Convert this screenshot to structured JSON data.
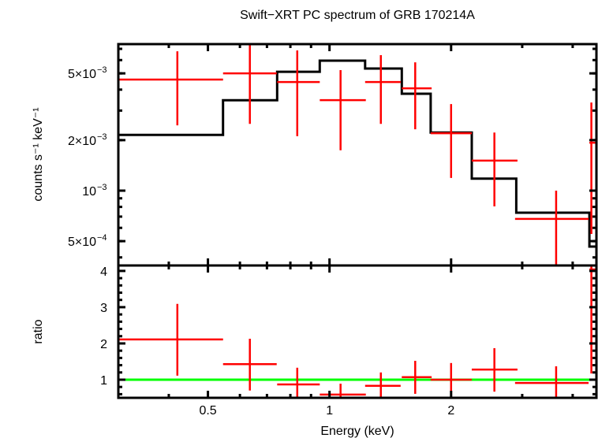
{
  "chart_data": [
    {
      "panel": "spectrum",
      "type": "scatter",
      "title": "Swift−XRT PC spectrum of GRB 170214A",
      "xlabel": "Energy (keV)",
      "ylabel": "counts s⁻¹ keV⁻¹",
      "xscale": "log",
      "yscale": "log",
      "xlim": [
        0.3,
        4.58
      ],
      "ylim": [
        0.000358,
        0.00747
      ],
      "xticks": [
        {
          "value": 0.5,
          "label": "0.5"
        },
        {
          "value": 1,
          "label": "1"
        },
        {
          "value": 2,
          "label": "2"
        }
      ],
      "yticks": [
        {
          "value": 0.0005,
          "mant": "5×10",
          "exp": "−4"
        },
        {
          "value": 0.001,
          "mant": "10",
          "exp": "−3"
        },
        {
          "value": 0.002,
          "mant": "2×10",
          "exp": "−3"
        },
        {
          "value": 0.005,
          "mant": "5×10",
          "exp": "−3"
        }
      ],
      "series": [
        {
          "name": "data",
          "color": "#ff0000",
          "points": [
            {
              "x": 0.42,
              "xlo": 0.3,
              "xhi": 0.545,
              "y": 0.00459,
              "ylo": 0.00245,
              "yhi": 0.00677
            },
            {
              "x": 0.635,
              "xlo": 0.545,
              "xhi": 0.74,
              "y": 0.005,
              "ylo": 0.0025,
              "yhi": 0.00753
            },
            {
              "x": 0.832,
              "xlo": 0.742,
              "xhi": 0.946,
              "y": 0.00444,
              "ylo": 0.00211,
              "yhi": 0.00685
            },
            {
              "x": 1.065,
              "xlo": 0.946,
              "xhi": 1.23,
              "y": 0.00346,
              "ylo": 0.00174,
              "yhi": 0.00523
            },
            {
              "x": 1.34,
              "xlo": 1.225,
              "xhi": 1.5,
              "y": 0.00444,
              "ylo": 0.0025,
              "yhi": 0.00642
            },
            {
              "x": 1.63,
              "xlo": 1.51,
              "xhi": 1.79,
              "y": 0.00407,
              "ylo": 0.00232,
              "yhi": 0.00582
            },
            {
              "x": 2.0,
              "xlo": 1.78,
              "xhi": 2.25,
              "y": 0.0022,
              "ylo": 0.00119,
              "yhi": 0.00328
            },
            {
              "x": 2.56,
              "xlo": 2.25,
              "xhi": 2.92,
              "y": 0.00151,
              "ylo": 0.000806,
              "yhi": 0.00222
            },
            {
              "x": 3.64,
              "xlo": 2.88,
              "xhi": 4.38,
              "y": 0.000678,
              "ylo": 0.000362,
              "yhi": 0.001
            },
            {
              "x": 4.45,
              "xlo": 4.4,
              "xhi": 4.58,
              "y": 0.00193,
              "ylo": 0.000552,
              "yhi": 0.00335
            }
          ]
        },
        {
          "name": "model",
          "color": "#000000",
          "type": "step",
          "steps": [
            {
              "xlo": 0.3,
              "xhi": 0.545,
              "y": 0.00215
            },
            {
              "xlo": 0.545,
              "xhi": 0.742,
              "y": 0.00346
            },
            {
              "xlo": 0.742,
              "xhi": 0.946,
              "y": 0.00511
            },
            {
              "xlo": 0.946,
              "xhi": 1.225,
              "y": 0.00595
            },
            {
              "xlo": 1.225,
              "xhi": 1.51,
              "y": 0.00534
            },
            {
              "xlo": 1.51,
              "xhi": 1.78,
              "y": 0.00378
            },
            {
              "xlo": 1.78,
              "xhi": 2.25,
              "y": 0.00222
            },
            {
              "xlo": 2.25,
              "xhi": 2.9,
              "y": 0.00118
            },
            {
              "xlo": 2.9,
              "xhi": 4.4,
              "y": 0.000739
            },
            {
              "xlo": 4.4,
              "xhi": 4.58,
              "y": 0.000464
            }
          ]
        }
      ]
    },
    {
      "panel": "ratio",
      "type": "scatter",
      "xlabel": "Energy (keV)",
      "ylabel": "ratio",
      "xscale": "log",
      "yscale": "linear",
      "xlim": [
        0.3,
        4.58
      ],
      "ylim": [
        0.5,
        4.15
      ],
      "yticks": [
        {
          "value": 1,
          "label": "1"
        },
        {
          "value": 2,
          "label": "2"
        },
        {
          "value": 3,
          "label": "3"
        },
        {
          "value": 4,
          "label": "4"
        }
      ],
      "reference_line": {
        "y": 1,
        "color": "#00ff00"
      },
      "series": [
        {
          "name": "ratio",
          "color": "#ff0000",
          "points": [
            {
              "x": 0.42,
              "xlo": 0.3,
              "xhi": 0.545,
              "y": 2.11,
              "ylo": 1.11,
              "yhi": 3.09
            },
            {
              "x": 0.635,
              "xlo": 0.545,
              "xhi": 0.74,
              "y": 1.43,
              "ylo": 0.7,
              "yhi": 2.13
            },
            {
              "x": 0.832,
              "xlo": 0.742,
              "xhi": 0.946,
              "y": 0.87,
              "ylo": 0.48,
              "yhi": 1.33
            },
            {
              "x": 1.065,
              "xlo": 0.946,
              "xhi": 1.23,
              "y": 0.59,
              "ylo": 0.45,
              "yhi": 0.89
            },
            {
              "x": 1.34,
              "xlo": 1.225,
              "xhi": 1.5,
              "y": 0.83,
              "ylo": 0.48,
              "yhi": 1.2
            },
            {
              "x": 1.63,
              "xlo": 1.51,
              "xhi": 1.79,
              "y": 1.07,
              "ylo": 0.61,
              "yhi": 1.52
            },
            {
              "x": 2.0,
              "xlo": 1.78,
              "xhi": 2.25,
              "y": 1.0,
              "ylo": 0.5,
              "yhi": 1.46
            },
            {
              "x": 2.56,
              "xlo": 2.25,
              "xhi": 2.92,
              "y": 1.28,
              "ylo": 0.67,
              "yhi": 1.87
            },
            {
              "x": 3.64,
              "xlo": 2.88,
              "xhi": 4.38,
              "y": 0.91,
              "ylo": 0.48,
              "yhi": 1.37
            },
            {
              "x": 4.45,
              "xlo": 4.4,
              "xhi": 4.58,
              "y": 4.04,
              "ylo": 1.17,
              "yhi": 4.3
            }
          ]
        }
      ]
    }
  ]
}
